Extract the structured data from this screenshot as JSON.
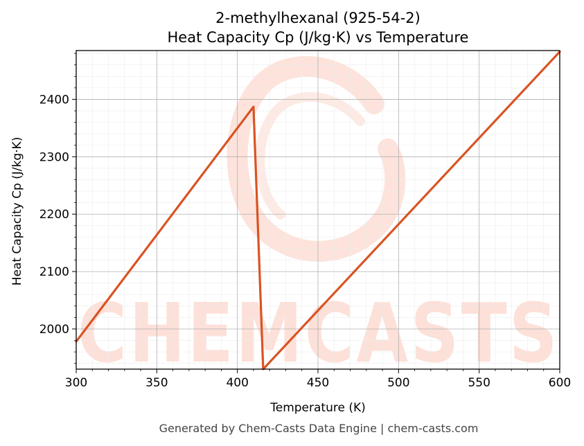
{
  "chart_data": {
    "type": "line",
    "title_line1": "2-methylhexanal (925-54-2)",
    "title_line2": "Heat Capacity Cp (J/kg·K) vs Temperature",
    "xlabel": "Temperature (K)",
    "ylabel": "Heat Capacity Cp (J/kg·K)",
    "xlim": [
      300,
      600
    ],
    "ylim": [
      1930,
      2485
    ],
    "x_ticks": [
      300,
      350,
      400,
      450,
      500,
      550,
      600
    ],
    "y_ticks": [
      2000,
      2100,
      2200,
      2300,
      2400
    ],
    "grid": true,
    "series": [
      {
        "color": "#d95323",
        "x": [
          300,
          410,
          416,
          600
        ],
        "y": [
          1978,
          2387,
          1930,
          2483
        ]
      }
    ]
  },
  "watermark": {
    "text": "CHEMCASTS",
    "color": "#fde0d8"
  },
  "footer": "Generated by Chem-Casts Data Engine | chem-casts.com"
}
